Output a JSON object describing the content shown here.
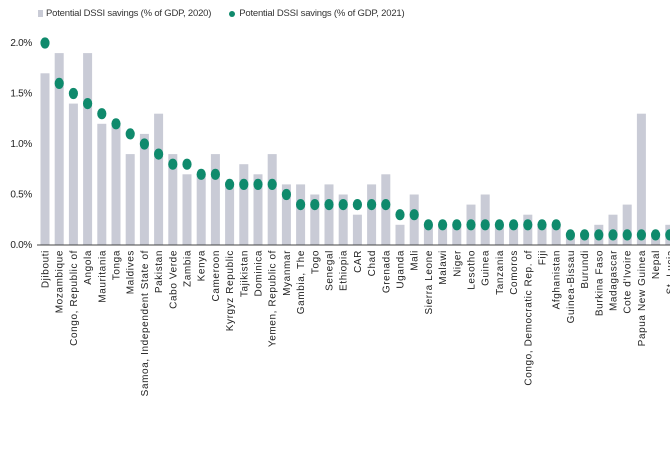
{
  "chart_data": {
    "type": "bar",
    "title": "",
    "xlabel": "",
    "ylabel": "",
    "ylim": [
      0,
      2.0
    ],
    "yticks": [
      "0.0%",
      "0.5%",
      "1.0%",
      "1.5%",
      "2.0%"
    ],
    "grid": false,
    "legend_position": "top-left",
    "categories": [
      "Djibouti",
      "Mozambique",
      "Congo, Republic of",
      "Angola",
      "Mauritania",
      "Tonga",
      "Maldives",
      "Samoa, Independent State of",
      "Pakistan",
      "Cabo Verde",
      "Zambia",
      "Kenya",
      "Cameroon",
      "Kyrgyz Republic",
      "Tajikistan",
      "Dominica",
      "Yemen, Republic of",
      "Myanmar",
      "Gambia, The",
      "Togo",
      "Senegal",
      "Ethiopia",
      "CAR",
      "Chad",
      "Grenada",
      "Uganda",
      "Mali",
      "Sierra Leone",
      "Malawi",
      "Niger",
      "Lesotho",
      "Guinea",
      "Tanzania",
      "Comoros",
      "Congo, Democratic Rep. of",
      "Fiji",
      "Afghanistan",
      "Guinea-Bissau",
      "Burundi",
      "Burkina Faso",
      "Madagascar",
      "Cote d'Ivoire",
      "Papua New Guinea",
      "Nepal",
      "St. Lucia"
    ],
    "series": [
      {
        "name": "Potential DSSI savings (% of GDP, 2020)",
        "kind": "bar",
        "color": "#c9cbd6",
        "values": [
          1.7,
          1.9,
          1.4,
          1.9,
          1.2,
          1.2,
          0.9,
          1.1,
          1.3,
          0.9,
          0.7,
          0.7,
          0.9,
          0.6,
          0.8,
          0.7,
          0.9,
          0.6,
          0.6,
          0.5,
          0.6,
          0.5,
          0.3,
          0.6,
          0.7,
          0.2,
          0.5,
          0.2,
          0.2,
          0.2,
          0.4,
          0.5,
          0.2,
          0.2,
          0.3,
          0.2,
          0.2,
          0.1,
          0.1,
          0.2,
          0.3,
          0.4,
          1.3,
          0.1,
          0.2
        ]
      },
      {
        "name": "Potential DSSI savings (% of GDP, 2021)",
        "kind": "dot",
        "color": "#0f8a6c",
        "values": [
          2.0,
          1.6,
          1.5,
          1.4,
          1.3,
          1.2,
          1.1,
          1.0,
          0.9,
          0.8,
          0.8,
          0.7,
          0.7,
          0.6,
          0.6,
          0.6,
          0.6,
          0.5,
          0.4,
          0.4,
          0.4,
          0.4,
          0.4,
          0.4,
          0.4,
          0.3,
          0.3,
          0.2,
          0.2,
          0.2,
          0.2,
          0.2,
          0.2,
          0.2,
          0.2,
          0.2,
          0.2,
          0.1,
          0.1,
          0.1,
          0.1,
          0.1,
          0.1,
          0.1,
          0.1
        ]
      }
    ]
  }
}
